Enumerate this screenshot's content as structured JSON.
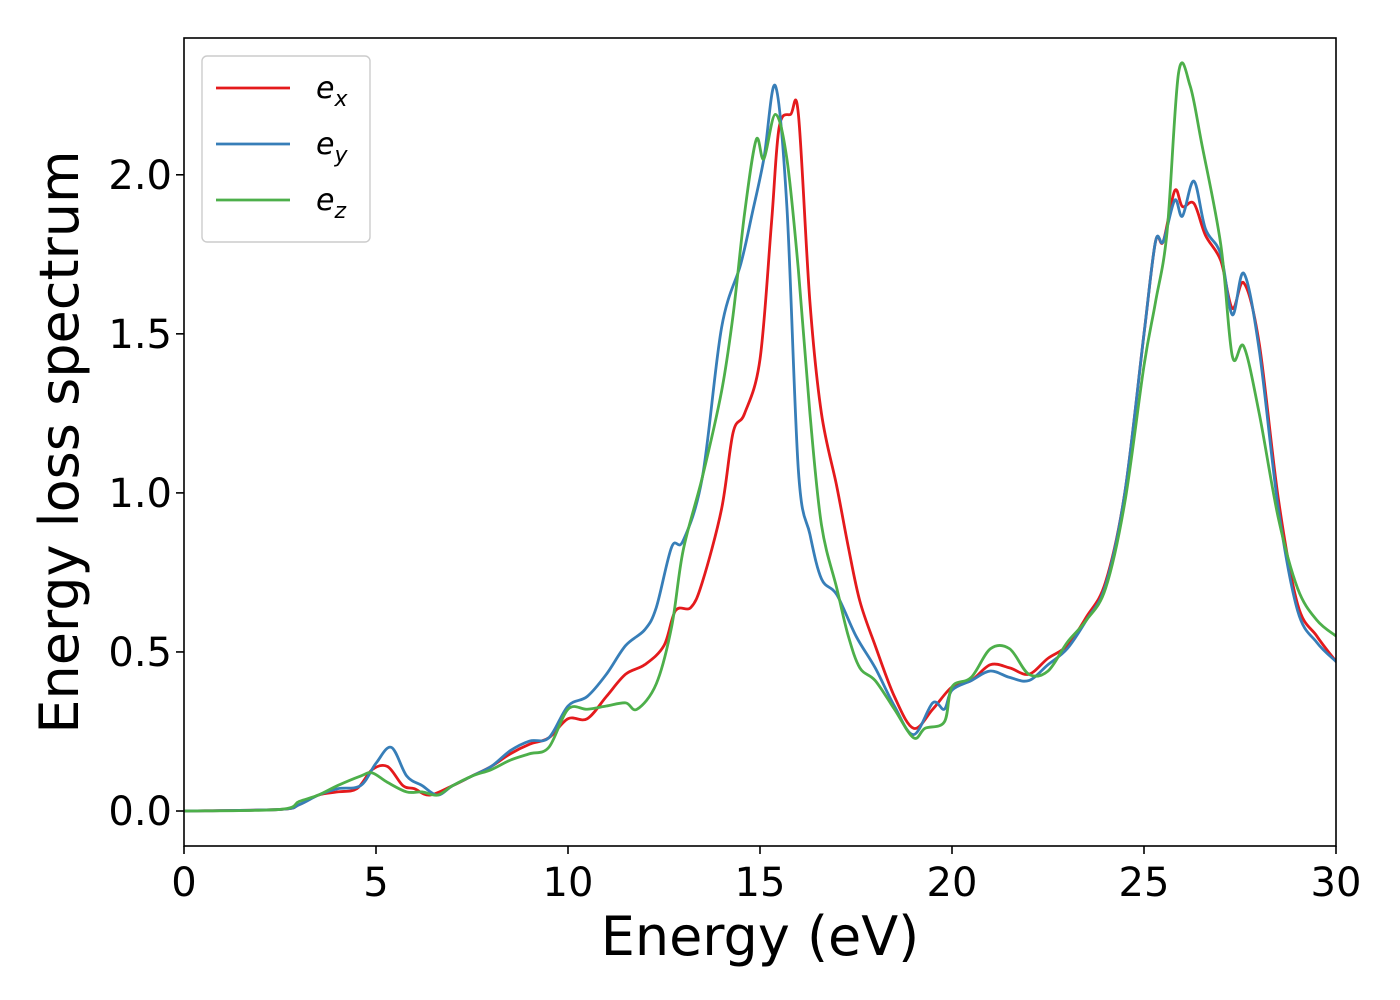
{
  "chart_data": {
    "type": "line",
    "xlabel": "Energy (eV)",
    "ylabel": "Energy loss spectrum",
    "xlim": [
      0,
      30
    ],
    "ylim": [
      -0.11,
      2.43
    ],
    "xticks": [
      0,
      5,
      10,
      15,
      20,
      25,
      30
    ],
    "xtick_labels": [
      "0",
      "5",
      "10",
      "15",
      "20",
      "25",
      "30"
    ],
    "yticks": [
      0.0,
      0.5,
      1.0,
      1.5,
      2.0
    ],
    "ytick_labels": [
      "0.0",
      "0.5",
      "1.0",
      "1.5",
      "2.0"
    ],
    "grid": false,
    "legend_position": "top-left",
    "series": [
      {
        "name": "e_x",
        "legend_base": "e",
        "legend_sub": "x",
        "color": "#e41a1c",
        "points": [
          [
            0,
            0
          ],
          [
            2.5,
            0.005
          ],
          [
            3,
            0.02
          ],
          [
            3.5,
            0.05
          ],
          [
            4,
            0.06
          ],
          [
            4.5,
            0.07
          ],
          [
            4.9,
            0.13
          ],
          [
            5.3,
            0.14
          ],
          [
            5.7,
            0.08
          ],
          [
            6,
            0.07
          ],
          [
            6.4,
            0.05
          ],
          [
            7,
            0.08
          ],
          [
            7.5,
            0.11
          ],
          [
            8,
            0.14
          ],
          [
            8.5,
            0.18
          ],
          [
            9,
            0.21
          ],
          [
            9.5,
            0.23
          ],
          [
            10,
            0.29
          ],
          [
            10.5,
            0.29
          ],
          [
            11,
            0.36
          ],
          [
            11.5,
            0.43
          ],
          [
            12,
            0.46
          ],
          [
            12.5,
            0.52
          ],
          [
            12.8,
            0.63
          ],
          [
            13.2,
            0.64
          ],
          [
            13.5,
            0.72
          ],
          [
            14,
            0.95
          ],
          [
            14.3,
            1.19
          ],
          [
            14.6,
            1.25
          ],
          [
            15,
            1.42
          ],
          [
            15.3,
            1.85
          ],
          [
            15.5,
            2.15
          ],
          [
            15.8,
            2.19
          ],
          [
            16,
            2.19
          ],
          [
            16.3,
            1.6
          ],
          [
            16.6,
            1.25
          ],
          [
            17,
            1.02
          ],
          [
            17.3,
            0.83
          ],
          [
            17.6,
            0.66
          ],
          [
            18,
            0.52
          ],
          [
            18.5,
            0.36
          ],
          [
            19,
            0.26
          ],
          [
            19.5,
            0.32
          ],
          [
            20,
            0.39
          ],
          [
            20.5,
            0.41
          ],
          [
            21,
            0.46
          ],
          [
            21.5,
            0.45
          ],
          [
            22,
            0.43
          ],
          [
            22.5,
            0.48
          ],
          [
            23,
            0.52
          ],
          [
            23.5,
            0.61
          ],
          [
            24,
            0.72
          ],
          [
            24.5,
            1.0
          ],
          [
            25,
            1.5
          ],
          [
            25.3,
            1.79
          ],
          [
            25.5,
            1.79
          ],
          [
            25.8,
            1.95
          ],
          [
            26,
            1.9
          ],
          [
            26.3,
            1.91
          ],
          [
            26.6,
            1.81
          ],
          [
            27,
            1.73
          ],
          [
            27.3,
            1.58
          ],
          [
            27.6,
            1.66
          ],
          [
            28,
            1.47
          ],
          [
            28.5,
            0.98
          ],
          [
            29,
            0.65
          ],
          [
            29.5,
            0.55
          ],
          [
            30,
            0.47
          ]
        ]
      },
      {
        "name": "e_y",
        "legend_base": "e",
        "legend_sub": "y",
        "color": "#377eb8",
        "points": [
          [
            0,
            0
          ],
          [
            2.5,
            0.005
          ],
          [
            3,
            0.02
          ],
          [
            3.5,
            0.05
          ],
          [
            4,
            0.07
          ],
          [
            4.6,
            0.08
          ],
          [
            5,
            0.15
          ],
          [
            5.4,
            0.2
          ],
          [
            5.8,
            0.11
          ],
          [
            6.2,
            0.08
          ],
          [
            6.6,
            0.05
          ],
          [
            7,
            0.08
          ],
          [
            7.5,
            0.11
          ],
          [
            8,
            0.14
          ],
          [
            8.5,
            0.19
          ],
          [
            9,
            0.22
          ],
          [
            9.5,
            0.23
          ],
          [
            10,
            0.33
          ],
          [
            10.5,
            0.36
          ],
          [
            11,
            0.43
          ],
          [
            11.5,
            0.52
          ],
          [
            12,
            0.57
          ],
          [
            12.3,
            0.64
          ],
          [
            12.7,
            0.83
          ],
          [
            13,
            0.85
          ],
          [
            13.5,
            1.05
          ],
          [
            14,
            1.52
          ],
          [
            14.5,
            1.72
          ],
          [
            14.8,
            1.88
          ],
          [
            15.1,
            2.05
          ],
          [
            15.4,
            2.28
          ],
          [
            15.7,
            1.9
          ],
          [
            16,
            1.07
          ],
          [
            16.3,
            0.87
          ],
          [
            16.6,
            0.73
          ],
          [
            17,
            0.68
          ],
          [
            17.5,
            0.55
          ],
          [
            18,
            0.45
          ],
          [
            18.5,
            0.33
          ],
          [
            19,
            0.24
          ],
          [
            19.5,
            0.34
          ],
          [
            19.8,
            0.32
          ],
          [
            20,
            0.38
          ],
          [
            20.5,
            0.41
          ],
          [
            21,
            0.44
          ],
          [
            21.5,
            0.42
          ],
          [
            22,
            0.41
          ],
          [
            22.5,
            0.46
          ],
          [
            23,
            0.51
          ],
          [
            23.5,
            0.6
          ],
          [
            24,
            0.71
          ],
          [
            24.5,
            1.0
          ],
          [
            25,
            1.5
          ],
          [
            25.3,
            1.79
          ],
          [
            25.5,
            1.79
          ],
          [
            25.8,
            1.92
          ],
          [
            26,
            1.87
          ],
          [
            26.3,
            1.98
          ],
          [
            26.6,
            1.83
          ],
          [
            27,
            1.75
          ],
          [
            27.3,
            1.56
          ],
          [
            27.6,
            1.69
          ],
          [
            28,
            1.45
          ],
          [
            28.5,
            0.95
          ],
          [
            29,
            0.63
          ],
          [
            29.5,
            0.53
          ],
          [
            30,
            0.47
          ]
        ]
      },
      {
        "name": "e_z",
        "legend_base": "e",
        "legend_sub": "z",
        "color": "#4daf4a",
        "points": [
          [
            0,
            0
          ],
          [
            2.5,
            0.005
          ],
          [
            3,
            0.03
          ],
          [
            3.5,
            0.05
          ],
          [
            4,
            0.08
          ],
          [
            4.6,
            0.11
          ],
          [
            4.9,
            0.12
          ],
          [
            5.3,
            0.09
          ],
          [
            5.8,
            0.06
          ],
          [
            6.2,
            0.06
          ],
          [
            6.6,
            0.05
          ],
          [
            7,
            0.08
          ],
          [
            7.5,
            0.11
          ],
          [
            8,
            0.13
          ],
          [
            8.5,
            0.16
          ],
          [
            9,
            0.18
          ],
          [
            9.5,
            0.2
          ],
          [
            10,
            0.32
          ],
          [
            10.5,
            0.32
          ],
          [
            11,
            0.33
          ],
          [
            11.5,
            0.34
          ],
          [
            11.8,
            0.32
          ],
          [
            12.3,
            0.4
          ],
          [
            12.7,
            0.58
          ],
          [
            13,
            0.82
          ],
          [
            13.5,
            1.05
          ],
          [
            14,
            1.32
          ],
          [
            14.3,
            1.56
          ],
          [
            14.6,
            1.88
          ],
          [
            14.9,
            2.11
          ],
          [
            15.1,
            2.05
          ],
          [
            15.4,
            2.19
          ],
          [
            15.7,
            2.05
          ],
          [
            16,
            1.7
          ],
          [
            16.3,
            1.25
          ],
          [
            16.6,
            0.9
          ],
          [
            17,
            0.7
          ],
          [
            17.3,
            0.55
          ],
          [
            17.6,
            0.45
          ],
          [
            18,
            0.41
          ],
          [
            18.5,
            0.32
          ],
          [
            19,
            0.23
          ],
          [
            19.3,
            0.26
          ],
          [
            19.8,
            0.28
          ],
          [
            20,
            0.39
          ],
          [
            20.5,
            0.42
          ],
          [
            21,
            0.51
          ],
          [
            21.5,
            0.51
          ],
          [
            22,
            0.43
          ],
          [
            22.5,
            0.44
          ],
          [
            23,
            0.53
          ],
          [
            23.5,
            0.6
          ],
          [
            24,
            0.7
          ],
          [
            24.5,
            0.97
          ],
          [
            25,
            1.4
          ],
          [
            25.3,
            1.6
          ],
          [
            25.6,
            1.82
          ],
          [
            25.9,
            2.32
          ],
          [
            26.2,
            2.28
          ],
          [
            26.5,
            2.1
          ],
          [
            27,
            1.78
          ],
          [
            27.3,
            1.43
          ],
          [
            27.6,
            1.46
          ],
          [
            28,
            1.25
          ],
          [
            28.5,
            0.92
          ],
          [
            29,
            0.7
          ],
          [
            29.5,
            0.6
          ],
          [
            30,
            0.55
          ]
        ]
      }
    ]
  }
}
